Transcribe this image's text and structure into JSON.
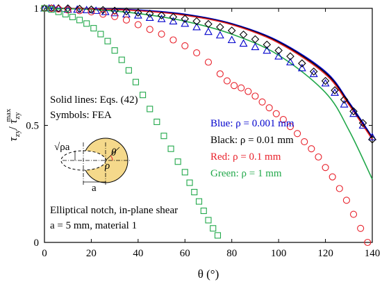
{
  "chart_data": {
    "type": "scatter",
    "title": "",
    "xlabel": "θ (°)",
    "ylabel": {
      "base_left": "τ",
      "sub_left": "zy",
      "slash": "/ ",
      "base_right": "τ",
      "sub_right": "zy",
      "sup_right": "max"
    },
    "xlim": [
      0,
      140
    ],
    "ylim": [
      0,
      1
    ],
    "x_ticks": [
      0,
      20,
      40,
      60,
      80,
      100,
      120,
      140
    ],
    "y_ticks": [
      0,
      0.5,
      1
    ],
    "x_tick_labels": [
      "0",
      "20",
      "40",
      "60",
      "80",
      "100",
      "120",
      "140"
    ],
    "y_tick_labels": [
      "0",
      "0.5",
      "1"
    ],
    "grid": false,
    "annotations": {
      "top_left_1": "Solid lines: Eqs. (42)",
      "top_left_2": "Symbols: FEA",
      "bottom_left_1": "Elliptical notch, in-plane shear",
      "bottom_left_2": "a = 5 mm, material 1"
    },
    "legend": [
      {
        "text": "Blue: ρ = 0.001 mm",
        "color": "#0000cc"
      },
      {
        "text": "Black: ρ = 0.01 mm",
        "color": "#000000"
      },
      {
        "text": "Red: ρ = 0.1 mm",
        "color": "#e8202a"
      },
      {
        "text": "Green: ρ = 1 mm",
        "color": "#21a84a"
      }
    ],
    "inset_labels": {
      "sqrt_label": "√ρa",
      "theta_label": "θ",
      "rho_label": "ρ",
      "a_label": "a"
    },
    "lines": [
      {
        "name": "Blue",
        "color": "#0000cc",
        "x": [
          0,
          20,
          40,
          60,
          80,
          100,
          120,
          130,
          140
        ],
        "y": [
          1.0,
          0.999,
          0.993,
          0.975,
          0.935,
          0.86,
          0.73,
          0.6,
          0.45
        ]
      },
      {
        "name": "Black",
        "color": "#000000",
        "x": [
          0,
          20,
          40,
          60,
          80,
          100,
          120,
          130,
          140
        ],
        "y": [
          1.0,
          0.998,
          0.99,
          0.972,
          0.932,
          0.856,
          0.724,
          0.594,
          0.445
        ]
      },
      {
        "name": "Red",
        "color": "#e8202a",
        "x": [
          0,
          20,
          40,
          60,
          80,
          100,
          120,
          130,
          140
        ],
        "y": [
          1.0,
          0.998,
          0.99,
          0.97,
          0.93,
          0.852,
          0.718,
          0.588,
          0.44
        ]
      },
      {
        "name": "Green",
        "color": "#21a84a",
        "x": [
          0,
          20,
          40,
          60,
          80,
          100,
          120,
          130,
          140
        ],
        "y": [
          1.0,
          0.995,
          0.978,
          0.945,
          0.89,
          0.8,
          0.64,
          0.48,
          0.27
        ]
      }
    ],
    "symbols": [
      {
        "name": "Blue",
        "color": "#0000cc",
        "marker": "triangle",
        "x": [
          0,
          2,
          4,
          6,
          10,
          14,
          18,
          22,
          26,
          30,
          35,
          40,
          45,
          50,
          55,
          60,
          65,
          70,
          75,
          80,
          85,
          90,
          95,
          100,
          105,
          110,
          115,
          120,
          124,
          128,
          132,
          136,
          140
        ],
        "y": [
          1.0,
          1.0,
          1.0,
          1.0,
          0.995,
          0.995,
          0.993,
          0.99,
          0.985,
          0.98,
          0.975,
          0.97,
          0.96,
          0.955,
          0.945,
          0.935,
          0.92,
          0.9,
          0.885,
          0.865,
          0.85,
          0.835,
          0.82,
          0.795,
          0.77,
          0.745,
          0.72,
          0.68,
          0.64,
          0.59,
          0.55,
          0.5,
          0.45
        ]
      },
      {
        "name": "Black",
        "color": "#000000",
        "marker": "diamond",
        "x": [
          0,
          3,
          6,
          10,
          15,
          20,
          25,
          30,
          35,
          40,
          45,
          50,
          55,
          60,
          65,
          70,
          75,
          80,
          85,
          90,
          95,
          100,
          105,
          110,
          115,
          120,
          124,
          128,
          132,
          136,
          140
        ],
        "y": [
          1.0,
          1.0,
          1.0,
          1.0,
          0.998,
          0.995,
          0.993,
          0.99,
          0.987,
          0.982,
          0.977,
          0.97,
          0.963,
          0.955,
          0.945,
          0.933,
          0.92,
          0.905,
          0.888,
          0.868,
          0.845,
          0.82,
          0.795,
          0.765,
          0.73,
          0.69,
          0.65,
          0.61,
          0.56,
          0.51,
          0.44
        ]
      },
      {
        "name": "Red",
        "color": "#e8202a",
        "marker": "circle",
        "x": [
          0,
          3,
          6,
          10,
          15,
          20,
          25,
          30,
          35,
          40,
          45,
          50,
          55,
          60,
          65,
          70,
          75,
          78,
          81,
          84,
          87,
          90,
          93,
          96,
          99,
          102,
          105,
          108,
          111,
          114,
          117,
          120,
          123,
          126,
          129,
          132,
          135,
          138
        ],
        "y": [
          1.0,
          1.0,
          0.997,
          0.993,
          0.99,
          0.985,
          0.975,
          0.965,
          0.95,
          0.93,
          0.91,
          0.89,
          0.865,
          0.84,
          0.81,
          0.77,
          0.72,
          0.69,
          0.67,
          0.66,
          0.645,
          0.625,
          0.6,
          0.575,
          0.55,
          0.525,
          0.495,
          0.465,
          0.43,
          0.4,
          0.365,
          0.32,
          0.28,
          0.23,
          0.18,
          0.12,
          0.06,
          0.0
        ]
      },
      {
        "name": "Green",
        "color": "#21a84a",
        "marker": "square",
        "x": [
          0,
          3,
          6,
          9,
          12,
          15,
          18,
          21,
          24,
          27,
          30,
          33,
          36,
          39,
          42,
          45,
          48,
          51,
          54,
          57,
          60,
          62,
          64,
          66,
          68,
          70,
          72,
          74
        ],
        "y": [
          1.0,
          0.995,
          0.985,
          0.975,
          0.963,
          0.95,
          0.935,
          0.915,
          0.89,
          0.86,
          0.82,
          0.78,
          0.735,
          0.685,
          0.63,
          0.57,
          0.515,
          0.455,
          0.4,
          0.345,
          0.3,
          0.255,
          0.215,
          0.175,
          0.135,
          0.095,
          0.06,
          0.03
        ]
      }
    ]
  }
}
